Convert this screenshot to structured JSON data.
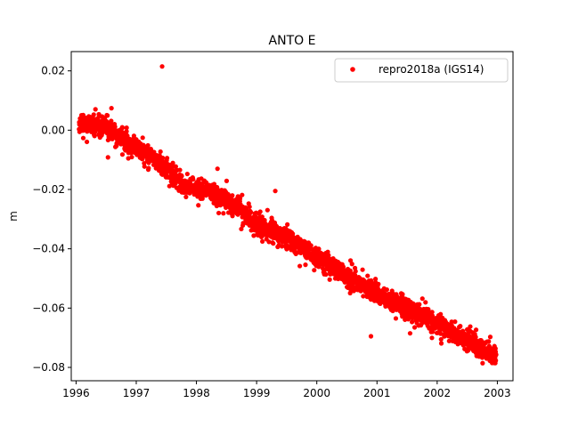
{
  "chart_data": {
    "type": "scatter",
    "title": "ANTO E",
    "xlabel": "",
    "ylabel": "m",
    "xlim": [
      1995.92,
      2003.26
    ],
    "ylim": [
      -0.0845,
      0.0265
    ],
    "x_ticks": [
      1996,
      1997,
      1998,
      1999,
      2000,
      2001,
      2002,
      2003
    ],
    "x_tick_labels": [
      "1996",
      "1997",
      "1998",
      "1999",
      "2000",
      "2001",
      "2002",
      "2003"
    ],
    "y_ticks": [
      0.02,
      0.0,
      -0.02,
      -0.04,
      -0.06,
      -0.08
    ],
    "y_tick_labels": [
      "0.02",
      "0.00",
      "−0.02",
      "−0.04",
      "−0.06",
      "−0.08"
    ],
    "grid": false,
    "legend_position": "top-right",
    "series": [
      {
        "name": "repro2018a (IGS14)",
        "color": "#ff0000",
        "marker": "circle",
        "x_range": [
          1996.05,
          2002.98
        ],
        "trend_points": [
          {
            "x": 1996.05,
            "y": 0.002
          },
          {
            "x": 1996.5,
            "y": 0.001
          },
          {
            "x": 1997.0,
            "y": -0.006
          },
          {
            "x": 1997.4,
            "y": -0.011
          },
          {
            "x": 1997.8,
            "y": -0.019
          },
          {
            "x": 1998.3,
            "y": -0.021
          },
          {
            "x": 1998.7,
            "y": -0.026
          },
          {
            "x": 1999.0,
            "y": -0.032
          },
          {
            "x": 1999.5,
            "y": -0.036
          },
          {
            "x": 2000.0,
            "y": -0.043
          },
          {
            "x": 2000.5,
            "y": -0.049
          },
          {
            "x": 2001.0,
            "y": -0.055
          },
          {
            "x": 2001.5,
            "y": -0.06
          },
          {
            "x": 2002.0,
            "y": -0.065
          },
          {
            "x": 2002.5,
            "y": -0.071
          },
          {
            "x": 2002.98,
            "y": -0.076
          }
        ],
        "outliers": [
          {
            "x": 1997.43,
            "y": 0.0215
          },
          {
            "x": 1999.31,
            "y": -0.0205
          },
          {
            "x": 1998.35,
            "y": -0.013
          },
          {
            "x": 2000.9,
            "y": -0.0695
          },
          {
            "x": 2001.55,
            "y": -0.0685
          },
          {
            "x": 2002.95,
            "y": -0.0785
          }
        ]
      }
    ]
  }
}
